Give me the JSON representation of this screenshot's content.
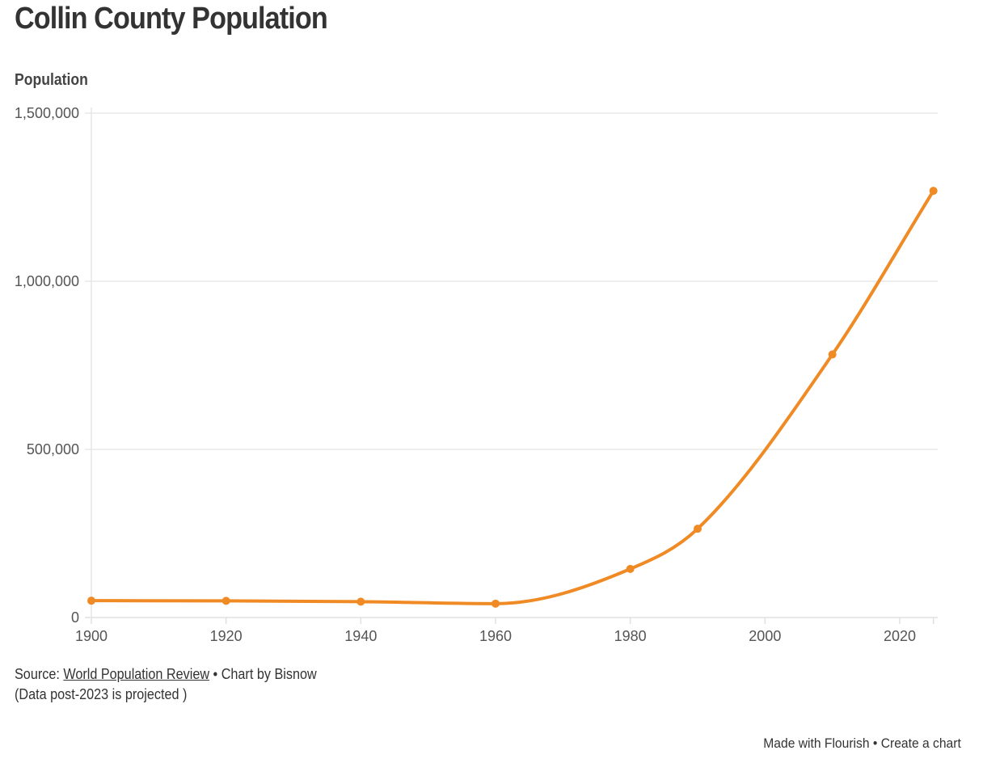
{
  "chart_data": {
    "type": "line",
    "title": "Collin County Population",
    "ylabel": "Population",
    "xlabel": "",
    "x": [
      1900,
      1920,
      1940,
      1960,
      1980,
      1990,
      2010,
      2025
    ],
    "series": [
      {
        "values": [
          50087,
          49609,
          47190,
          41247,
          144576,
          264036,
          782341,
          1269000
        ]
      }
    ],
    "xlim": [
      1900,
      2025
    ],
    "ylim": [
      0,
      1500000
    ],
    "xticks": [
      "1900",
      "1920",
      "1940",
      "1960",
      "1980",
      "2000",
      "2020"
    ],
    "yticks": [
      "0",
      "500,000",
      "1,000,000",
      "1,500,000"
    ],
    "grid": "horizontal",
    "line_color": "#f08a24",
    "curve": "smooth",
    "markers": true
  },
  "footer": {
    "source_prefix": "Source: ",
    "source_link": "World Population Review",
    "source_suffix": " • Chart by Bisnow",
    "note": "(Data post-2023 is projected )",
    "made_with": "Made with Flourish",
    "separator": " • ",
    "create": "Create a chart"
  }
}
